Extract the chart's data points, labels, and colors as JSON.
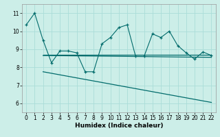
{
  "xlabel": "Humidex (Indice chaleur)",
  "bg_color": "#cceee8",
  "grid_color": "#aaddd8",
  "line_color": "#006b6b",
  "xlim": [
    -0.5,
    22.5
  ],
  "ylim": [
    5.5,
    11.5
  ],
  "xticks": [
    0,
    1,
    2,
    3,
    4,
    5,
    6,
    7,
    8,
    9,
    10,
    11,
    12,
    13,
    14,
    15,
    16,
    17,
    18,
    19,
    20,
    21,
    22
  ],
  "yticks": [
    6,
    7,
    8,
    9,
    10,
    11
  ],
  "line1_x": [
    0,
    1,
    2,
    3,
    4,
    5,
    6,
    7,
    8,
    9,
    10,
    11,
    12,
    13,
    14,
    15,
    16,
    17,
    18,
    19,
    20,
    21,
    22
  ],
  "line1_y": [
    10.35,
    11.0,
    9.5,
    8.25,
    8.9,
    8.9,
    8.8,
    7.75,
    7.75,
    9.3,
    9.65,
    10.2,
    10.35,
    8.6,
    8.6,
    9.85,
    9.65,
    10.0,
    9.2,
    8.8,
    8.45,
    8.85,
    8.65
  ],
  "line2_x": [
    2,
    22
  ],
  "line2_y": [
    8.7,
    8.7
  ],
  "line3_x": [
    2,
    22
  ],
  "line3_y": [
    8.65,
    8.55
  ],
  "line4_x": [
    2,
    22
  ],
  "line4_y": [
    7.75,
    6.05
  ],
  "xlabel_fontsize": 6.5,
  "tick_fontsize": 5.5
}
